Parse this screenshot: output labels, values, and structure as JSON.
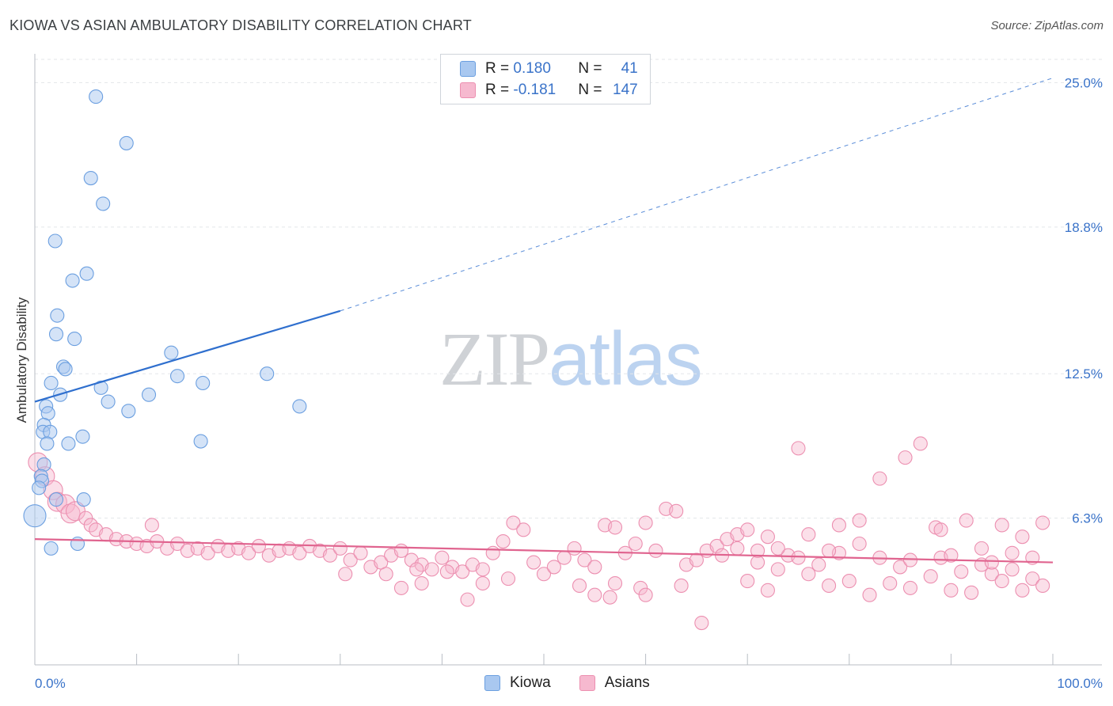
{
  "header": {
    "title": "KIOWA VS ASIAN AMBULATORY DISABILITY CORRELATION CHART",
    "source": "Source: ZipAtlas.com"
  },
  "watermark": {
    "zip": "ZIP",
    "atlas": "atlas"
  },
  "legend": {
    "kiowa": {
      "r_label": "R = ",
      "r_value": "0.180",
      "n_label": "N = ",
      "n_value": "41"
    },
    "asians": {
      "r_label": "R = ",
      "r_value": "-0.181",
      "n_label": "N = ",
      "n_value": "147"
    }
  },
  "colors": {
    "kiowa_fill": "#a9c8f0",
    "kiowa_stroke": "#6b9fe0",
    "kiowa_line": "#2f6fce",
    "asians_fill": "#f6b9cf",
    "asians_stroke": "#ec8fb0",
    "asians_line": "#e0648f",
    "tick_label": "#3a73c9",
    "grid": "#e3e6ea"
  },
  "chart_data": {
    "type": "scatter",
    "title": "KIOWA VS ASIAN AMBULATORY DISABILITY CORRELATION CHART",
    "xlabel": "",
    "ylabel": "Ambulatory Disability",
    "xlim": [
      0,
      100
    ],
    "ylim": [
      0,
      26
    ],
    "x_tick_labels": [
      "0.0%",
      "100.0%"
    ],
    "y_ticks": [
      {
        "value": 6.3,
        "label": "6.3%"
      },
      {
        "value": 12.5,
        "label": "12.5%"
      },
      {
        "value": 18.8,
        "label": "18.8%"
      },
      {
        "value": 25.0,
        "label": "25.0%"
      }
    ],
    "grid": true,
    "legend_position": "top-center",
    "series": [
      {
        "name": "Kiowa",
        "trend": {
          "x0": 0,
          "y0": 11.3,
          "x1": 30,
          "y1": 15.2,
          "dashed_to_x": 100,
          "dashed_to_y": 25.2
        },
        "points": [
          [
            6,
            24.4
          ],
          [
            9,
            22.4
          ],
          [
            5.5,
            20.9
          ],
          [
            6.7,
            19.8
          ],
          [
            2,
            18.2
          ],
          [
            5.1,
            16.8
          ],
          [
            3.7,
            16.5
          ],
          [
            2.2,
            15.0
          ],
          [
            2.1,
            14.2
          ],
          [
            3.9,
            14.0
          ],
          [
            13.4,
            13.4
          ],
          [
            2.8,
            12.8
          ],
          [
            3.0,
            12.7
          ],
          [
            22.8,
            12.5
          ],
          [
            14,
            12.4
          ],
          [
            16.5,
            12.1
          ],
          [
            1.6,
            12.1
          ],
          [
            6.5,
            11.9
          ],
          [
            2.5,
            11.6
          ],
          [
            11.2,
            11.6
          ],
          [
            7.2,
            11.3
          ],
          [
            1.1,
            11.1
          ],
          [
            26,
            11.1
          ],
          [
            9.2,
            10.9
          ],
          [
            1.3,
            10.8
          ],
          [
            0.9,
            10.3
          ],
          [
            0.8,
            10.0
          ],
          [
            1.5,
            10.0
          ],
          [
            4.7,
            9.8
          ],
          [
            1.2,
            9.5
          ],
          [
            3.3,
            9.5
          ],
          [
            16.3,
            9.6
          ],
          [
            0.9,
            8.6
          ],
          [
            0.6,
            8.1
          ],
          [
            0.7,
            7.9
          ],
          [
            0.4,
            7.6
          ],
          [
            2.1,
            7.1
          ],
          [
            4.8,
            7.1
          ],
          [
            0.0,
            6.4
          ],
          [
            4.2,
            5.2
          ],
          [
            1.6,
            5.0
          ]
        ]
      },
      {
        "name": "Asians",
        "trend": {
          "x0": 0,
          "y0": 5.4,
          "x1": 100,
          "y1": 4.4
        },
        "points": [
          [
            0.3,
            8.7
          ],
          [
            1,
            8.1
          ],
          [
            1.8,
            7.5
          ],
          [
            2.2,
            7.0
          ],
          [
            3.0,
            6.9
          ],
          [
            3.5,
            6.5
          ],
          [
            4.0,
            6.6
          ],
          [
            5.0,
            6.3
          ],
          [
            5.5,
            6.0
          ],
          [
            6.0,
            5.8
          ],
          [
            7.0,
            5.6
          ],
          [
            8.0,
            5.4
          ],
          [
            9.0,
            5.3
          ],
          [
            10.0,
            5.2
          ],
          [
            11.0,
            5.1
          ],
          [
            12.0,
            5.3
          ],
          [
            13.0,
            5.0
          ],
          [
            14.0,
            5.2
          ],
          [
            15.0,
            4.9
          ],
          [
            16.0,
            5.0
          ],
          [
            17.0,
            4.8
          ],
          [
            18.0,
            5.1
          ],
          [
            19.0,
            4.9
          ],
          [
            20.0,
            5.0
          ],
          [
            21.0,
            4.8
          ],
          [
            22.0,
            5.1
          ],
          [
            23.0,
            4.7
          ],
          [
            24.0,
            4.9
          ],
          [
            25.0,
            5.0
          ],
          [
            26.0,
            4.8
          ],
          [
            27.0,
            5.1
          ],
          [
            28.0,
            4.9
          ],
          [
            29.0,
            4.7
          ],
          [
            30.0,
            5.0
          ],
          [
            31.0,
            4.5
          ],
          [
            32.0,
            4.8
          ],
          [
            33.0,
            4.2
          ],
          [
            34.0,
            4.4
          ],
          [
            35.0,
            4.7
          ],
          [
            36.0,
            4.9
          ],
          [
            37.0,
            4.5
          ],
          [
            38.0,
            4.3
          ],
          [
            39.0,
            4.1
          ],
          [
            40.0,
            4.6
          ],
          [
            41.0,
            4.2
          ],
          [
            42.0,
            4.0
          ],
          [
            43.0,
            4.3
          ],
          [
            44.0,
            4.1
          ],
          [
            45.0,
            4.8
          ],
          [
            46.0,
            5.3
          ],
          [
            47.0,
            6.1
          ],
          [
            48.0,
            5.8
          ],
          [
            49.0,
            4.4
          ],
          [
            50.0,
            3.9
          ],
          [
            51.0,
            4.2
          ],
          [
            52.0,
            4.6
          ],
          [
            53.0,
            5.0
          ],
          [
            54.0,
            4.5
          ],
          [
            55.0,
            4.2
          ],
          [
            56.0,
            6.0
          ],
          [
            57.0,
            5.9
          ],
          [
            58.0,
            4.8
          ],
          [
            59.0,
            5.2
          ],
          [
            60.0,
            6.1
          ],
          [
            61.0,
            4.9
          ],
          [
            62.0,
            6.7
          ],
          [
            63.0,
            6.6
          ],
          [
            64.0,
            4.3
          ],
          [
            65.0,
            4.5
          ],
          [
            66.0,
            4.9
          ],
          [
            67.0,
            5.1
          ],
          [
            68.0,
            5.4
          ],
          [
            69.0,
            5.6
          ],
          [
            70.0,
            5.8
          ],
          [
            71.0,
            4.4
          ],
          [
            72.0,
            5.5
          ],
          [
            73.0,
            4.1
          ],
          [
            74.0,
            4.7
          ],
          [
            75.0,
            9.3
          ],
          [
            76.0,
            3.9
          ],
          [
            77.0,
            4.3
          ],
          [
            78.0,
            3.4
          ],
          [
            79.0,
            4.8
          ],
          [
            80.0,
            3.6
          ],
          [
            81.0,
            6.2
          ],
          [
            82.0,
            3.0
          ],
          [
            83.0,
            8.0
          ],
          [
            84.0,
            3.5
          ],
          [
            85.0,
            4.2
          ],
          [
            86.0,
            3.3
          ],
          [
            87.0,
            9.5
          ],
          [
            88.0,
            3.8
          ],
          [
            89.0,
            4.6
          ],
          [
            90.0,
            3.2
          ],
          [
            91.0,
            4.0
          ],
          [
            92.0,
            3.1
          ],
          [
            93.0,
            4.3
          ],
          [
            94.0,
            3.9
          ],
          [
            95.0,
            3.6
          ],
          [
            96.0,
            4.1
          ],
          [
            97.0,
            3.2
          ],
          [
            98.0,
            3.7
          ],
          [
            99.0,
            3.4
          ],
          [
            42.5,
            2.8
          ],
          [
            44.0,
            3.5
          ],
          [
            53.5,
            3.4
          ],
          [
            57.0,
            3.5
          ],
          [
            59.5,
            3.3
          ],
          [
            63.5,
            3.4
          ],
          [
            65.5,
            1.8
          ],
          [
            56.5,
            2.9
          ],
          [
            46.5,
            3.7
          ],
          [
            38.0,
            3.5
          ],
          [
            36.0,
            3.3
          ],
          [
            30.5,
            3.9
          ],
          [
            34.5,
            3.9
          ],
          [
            40.5,
            4.0
          ],
          [
            37.5,
            4.1
          ],
          [
            55.0,
            3.0
          ],
          [
            60.0,
            3.0
          ],
          [
            70.0,
            3.6
          ],
          [
            72.0,
            3.2
          ],
          [
            79.0,
            6.0
          ],
          [
            88.5,
            5.9
          ],
          [
            91.5,
            6.2
          ],
          [
            95.0,
            6.0
          ],
          [
            99.0,
            6.1
          ],
          [
            85.5,
            8.9
          ],
          [
            76.0,
            5.6
          ],
          [
            81.0,
            5.2
          ],
          [
            93.0,
            5.0
          ],
          [
            97.0,
            5.5
          ],
          [
            89.0,
            5.8
          ],
          [
            69.0,
            5.0
          ],
          [
            67.5,
            4.7
          ],
          [
            71.0,
            4.9
          ],
          [
            73.0,
            5.0
          ],
          [
            75.0,
            4.6
          ],
          [
            78.0,
            4.9
          ],
          [
            83.0,
            4.6
          ],
          [
            86.0,
            4.5
          ],
          [
            90.0,
            4.7
          ],
          [
            94.0,
            4.4
          ],
          [
            96.0,
            4.8
          ],
          [
            98.0,
            4.6
          ],
          [
            11.5,
            6.0
          ]
        ]
      }
    ]
  },
  "bottom_legend": {
    "kiowa": "Kiowa",
    "asians": "Asians"
  }
}
